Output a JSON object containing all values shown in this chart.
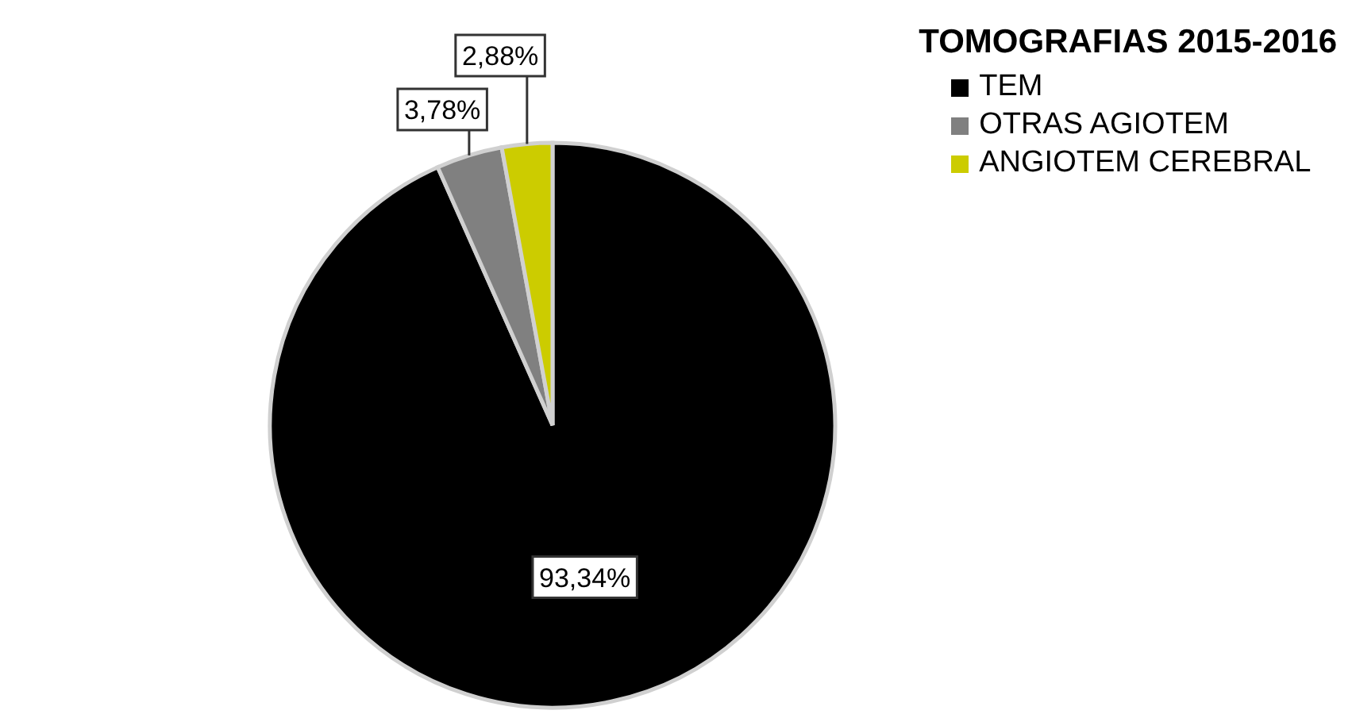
{
  "chart_data": {
    "type": "pie",
    "legend_title": "TOMOGRAFIAS 2015-2016",
    "categories": [
      "TEM",
      "OTRAS AGIOTEM",
      "ANGIOTEM CEREBRAL"
    ],
    "values": [
      93.34,
      3.78,
      2.88
    ],
    "colors": [
      "#000000",
      "#808080",
      "#cccc00"
    ],
    "value_labels": [
      "93,34%",
      "3,78%",
      "2,88%"
    ],
    "legend": "top right"
  }
}
